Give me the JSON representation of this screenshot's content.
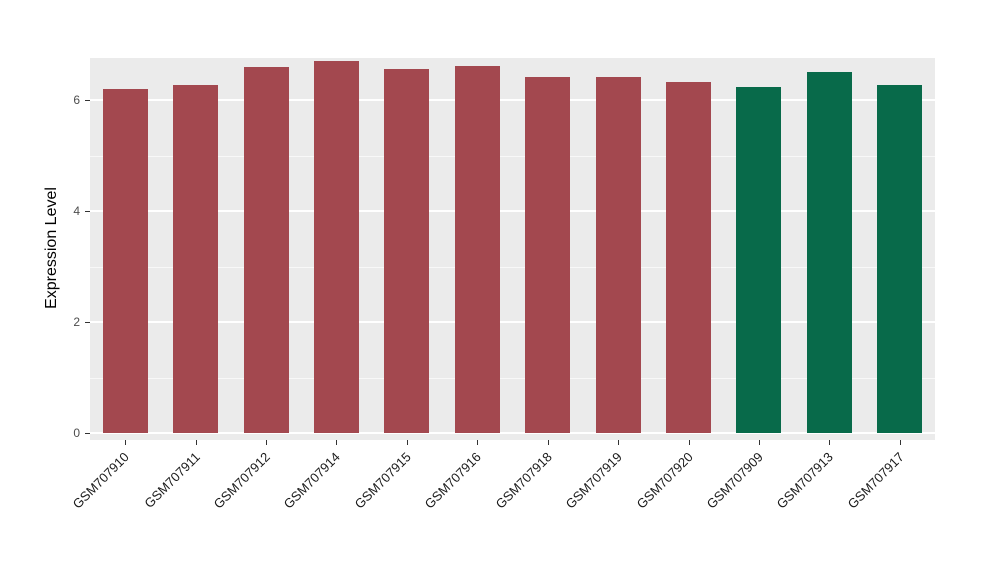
{
  "chart_data": {
    "type": "bar",
    "title": "",
    "xlabel": "",
    "ylabel": "Expression Level",
    "ylim": [
      0,
      6.9
    ],
    "yticks": [
      0,
      2,
      4,
      6
    ],
    "yticks_minor": [
      1,
      3,
      5
    ],
    "grid": true,
    "legend_position": "none",
    "panel_bg_color": "#EBEBEB",
    "grid_color": "#FFFFFF",
    "tick_text_color": "#4D4D4D",
    "categories": [
      "GSM707910",
      "GSM707911",
      "GSM707912",
      "GSM707914",
      "GSM707915",
      "GSM707916",
      "GSM707918",
      "GSM707919",
      "GSM707920",
      "GSM707909",
      "GSM707913",
      "GSM707917"
    ],
    "values": [
      6.2,
      6.27,
      6.6,
      6.7,
      6.55,
      6.62,
      6.42,
      6.42,
      6.33,
      6.24,
      6.5,
      6.27
    ],
    "groups": [
      "group1",
      "group1",
      "group1",
      "group1",
      "group1",
      "group1",
      "group1",
      "group1",
      "group1",
      "group2",
      "group2",
      "group2"
    ],
    "group_colors": {
      "group1": "#A3484F",
      "group2": "#086A4A"
    }
  }
}
